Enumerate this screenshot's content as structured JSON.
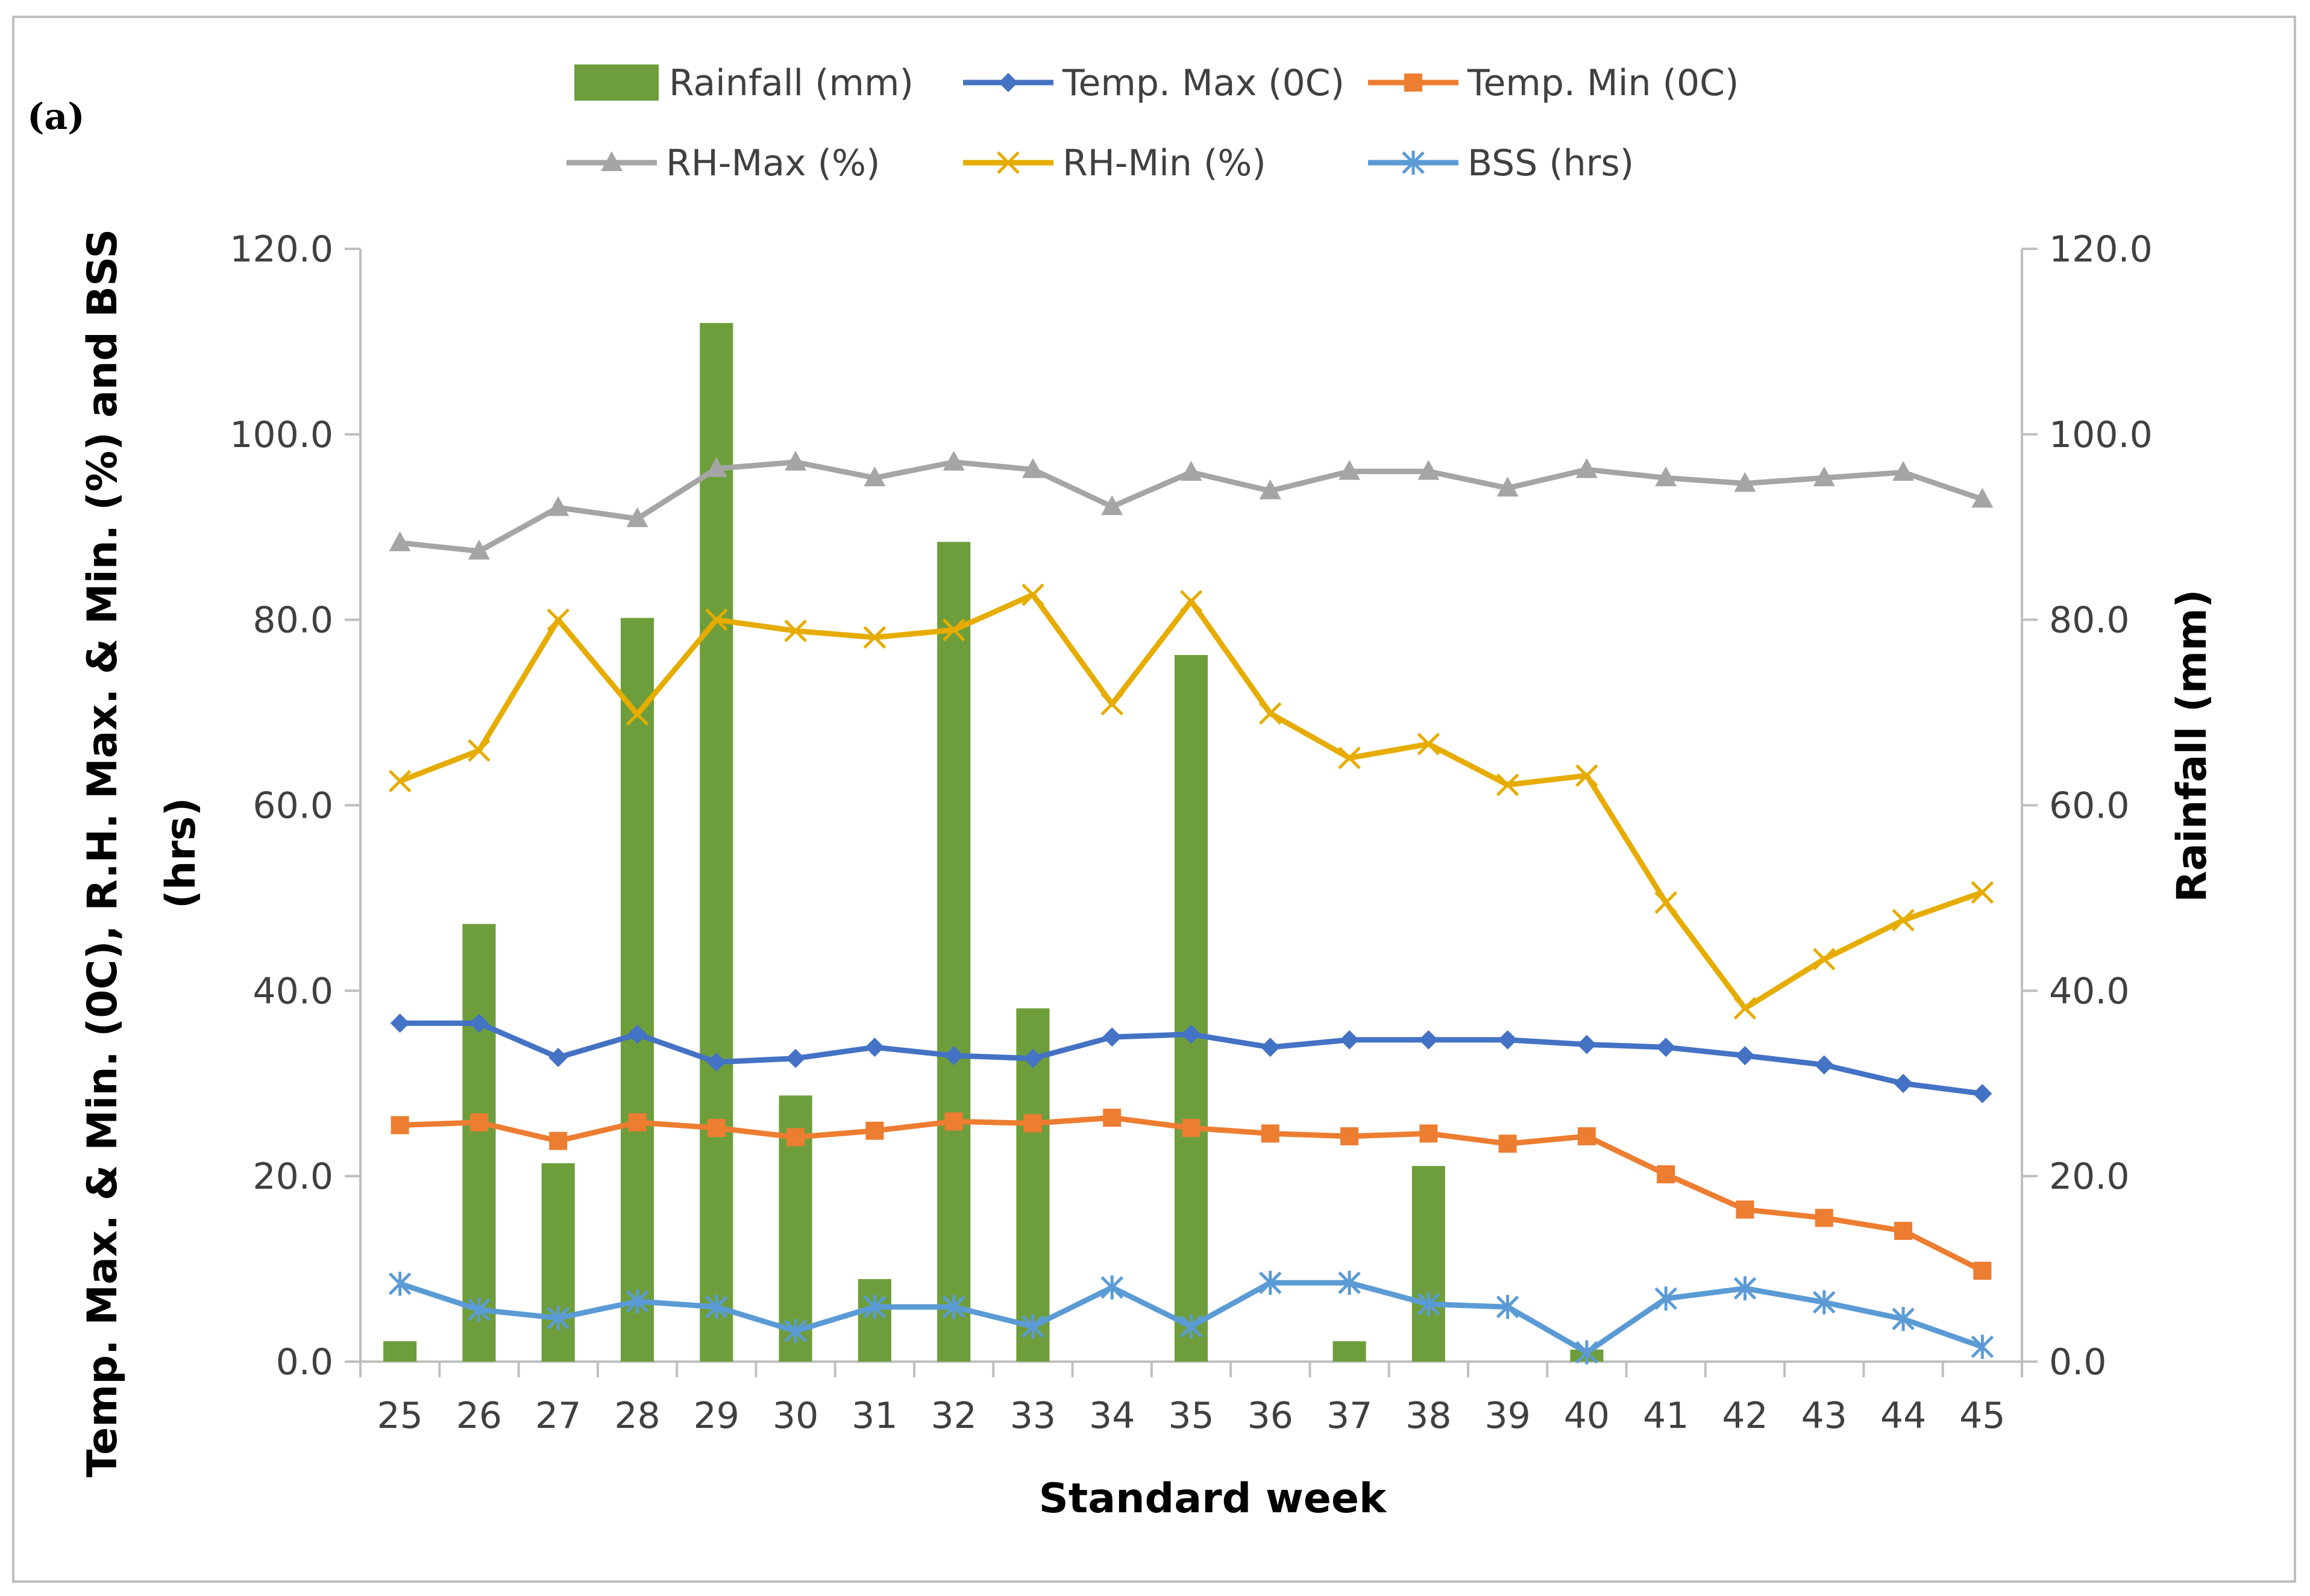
{
  "chart_data": {
    "type": "bar+line",
    "panel_label": "(a)",
    "xlabel": "Standard week",
    "ylabel_left": "Temp. Max. & Min. (0C), R.H. Max. & Min. (%) and BSS (hrs)",
    "ylabel_right": "Rainfall (mm)",
    "ylim_left": [
      0,
      120
    ],
    "ylim_right": [
      0,
      120
    ],
    "y_ticks": [
      "0.0",
      "20.0",
      "40.0",
      "60.0",
      "80.0",
      "100.0",
      "120.0"
    ],
    "y_tick_values": [
      0,
      20,
      40,
      60,
      80,
      100,
      120
    ],
    "categories": [
      "25",
      "26",
      "27",
      "28",
      "29",
      "30",
      "31",
      "32",
      "33",
      "34",
      "35",
      "36",
      "37",
      "38",
      "39",
      "40",
      "41",
      "42",
      "43",
      "44",
      "45"
    ],
    "bar_series": {
      "name": "Rainfall (mm)",
      "color": "#6e9e3c",
      "axis": "right",
      "values": [
        2.2,
        47.2,
        21.4,
        80.2,
        112.0,
        28.7,
        8.9,
        88.4,
        38.1,
        0,
        76.2,
        0,
        2.2,
        21.1,
        0,
        1.3,
        0,
        0,
        0,
        0,
        0
      ]
    },
    "line_series": [
      {
        "name": "Temp. Max (0C)",
        "color": "#4472c4",
        "marker": "diamond",
        "values": [
          36.5,
          36.5,
          32.8,
          35.3,
          32.3,
          32.7,
          33.9,
          33.0,
          32.7,
          35.0,
          35.3,
          33.9,
          34.7,
          34.7,
          34.7,
          34.2,
          33.9,
          33.0,
          32.0,
          30.0,
          28.9
        ]
      },
      {
        "name": "Temp. Min (0C)",
        "color": "#ed7d31",
        "marker": "square",
        "values": [
          25.5,
          25.8,
          23.8,
          25.8,
          25.2,
          24.2,
          24.9,
          25.9,
          25.7,
          26.3,
          25.2,
          24.6,
          24.3,
          24.6,
          23.5,
          24.3,
          20.2,
          16.4,
          15.5,
          14.1,
          9.8
        ]
      },
      {
        "name": "RH-Max (%)",
        "color": "#a5a5a5",
        "marker": "triangle",
        "values": [
          88.3,
          87.4,
          92.1,
          90.9,
          96.3,
          97.0,
          95.3,
          97.0,
          96.2,
          92.2,
          95.9,
          93.9,
          96.0,
          96.0,
          94.2,
          96.2,
          95.3,
          94.7,
          95.3,
          95.9,
          93.0
        ]
      },
      {
        "name": "RH-Min (%)",
        "color": "#e6ac00",
        "marker": "x",
        "values": [
          62.6,
          65.9,
          80.0,
          69.8,
          80.0,
          78.8,
          78.1,
          78.9,
          82.7,
          70.9,
          82.0,
          69.9,
          65.1,
          66.6,
          62.2,
          63.2,
          49.5,
          38.1,
          43.4,
          47.6,
          50.6
        ]
      },
      {
        "name": "BSS (hrs)",
        "color": "#5b9bd5",
        "marker": "star",
        "values": [
          8.4,
          5.6,
          4.7,
          6.5,
          5.9,
          3.3,
          5.9,
          5.9,
          3.8,
          8.0,
          3.8,
          8.5,
          8.5,
          6.2,
          5.9,
          1.0,
          6.8,
          7.9,
          6.4,
          4.6,
          1.6
        ]
      }
    ],
    "legend_position": "top"
  }
}
